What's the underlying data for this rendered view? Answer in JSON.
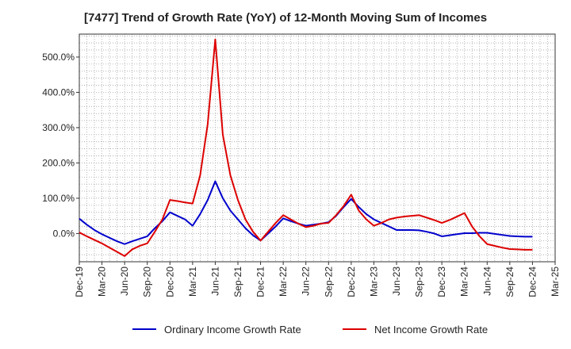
{
  "chart_data": {
    "type": "line",
    "title": "[7477]  Trend of Growth Rate (YoY) of 12-Month Moving Sum of Incomes",
    "xlabel": "",
    "ylabel": "",
    "x_ticks": [
      "Dec-19",
      "Mar-20",
      "Jun-20",
      "Sep-20",
      "Dec-20",
      "Mar-21",
      "Jun-21",
      "Sep-21",
      "Dec-21",
      "Mar-22",
      "Jun-22",
      "Sep-22",
      "Dec-22",
      "Mar-23",
      "Jun-23",
      "Sep-23",
      "Dec-23",
      "Mar-24",
      "Jun-24",
      "Sep-24",
      "Dec-24",
      "Mar-25"
    ],
    "y_ticks": [
      0,
      100,
      200,
      300,
      400,
      500
    ],
    "y_tick_labels": [
      "0.0%",
      "100.0%",
      "200.0%",
      "300.0%",
      "400.0%",
      "500.0%"
    ],
    "ylim": [
      -80,
      565
    ],
    "grid": true,
    "legend_position": "bottom",
    "x": [
      "Dec-19",
      "Jan-20",
      "Feb-20",
      "Mar-20",
      "Apr-20",
      "May-20",
      "Jun-20",
      "Jul-20",
      "Aug-20",
      "Sep-20",
      "Oct-20",
      "Nov-20",
      "Dec-20",
      "Jan-21",
      "Feb-21",
      "Mar-21",
      "Apr-21",
      "May-21",
      "Jun-21",
      "Jul-21",
      "Aug-21",
      "Sep-21",
      "Oct-21",
      "Nov-21",
      "Dec-21",
      "Jan-22",
      "Feb-22",
      "Mar-22",
      "Apr-22",
      "May-22",
      "Jun-22",
      "Jul-22",
      "Aug-22",
      "Sep-22",
      "Oct-22",
      "Nov-22",
      "Dec-22",
      "Jan-23",
      "Feb-23",
      "Mar-23",
      "Apr-23",
      "May-23",
      "Jun-23",
      "Jul-23",
      "Aug-23",
      "Sep-23",
      "Oct-23",
      "Nov-23",
      "Dec-23",
      "Jan-24",
      "Feb-24",
      "Mar-24",
      "Apr-24",
      "May-24",
      "Jun-24",
      "Jul-24",
      "Aug-24",
      "Sep-24",
      "Oct-24",
      "Nov-24",
      "Dec-24"
    ],
    "series": [
      {
        "name": "Ordinary Income Growth Rate",
        "color": "#0000cc",
        "values": [
          42,
          25,
          10,
          -2,
          -12,
          -22,
          -30,
          -22,
          -15,
          -8,
          15,
          35,
          60,
          50,
          40,
          22,
          55,
          95,
          148,
          100,
          65,
          40,
          15,
          -5,
          -20,
          0,
          20,
          43,
          35,
          28,
          22,
          25,
          28,
          32,
          50,
          75,
          98,
          75,
          55,
          40,
          30,
          20,
          10,
          10,
          10,
          9,
          5,
          0,
          -8,
          -5,
          -2,
          1,
          1,
          2,
          2,
          -1,
          -4,
          -7,
          -8,
          -9,
          -9
        ]
      },
      {
        "name": "Net Income Growth Rate",
        "color": "#dd0000",
        "values": [
          3,
          -8,
          -18,
          -28,
          -40,
          -52,
          -64,
          -45,
          -35,
          -28,
          5,
          40,
          95,
          92,
          88,
          85,
          165,
          310,
          550,
          280,
          165,
          95,
          40,
          5,
          -20,
          5,
          30,
          52,
          40,
          28,
          18,
          22,
          28,
          30,
          52,
          78,
          110,
          65,
          40,
          22,
          30,
          40,
          45,
          48,
          50,
          52,
          45,
          38,
          30,
          38,
          48,
          58,
          20,
          -8,
          -30,
          -35,
          -40,
          -44,
          -45,
          -46,
          -46
        ]
      }
    ]
  }
}
